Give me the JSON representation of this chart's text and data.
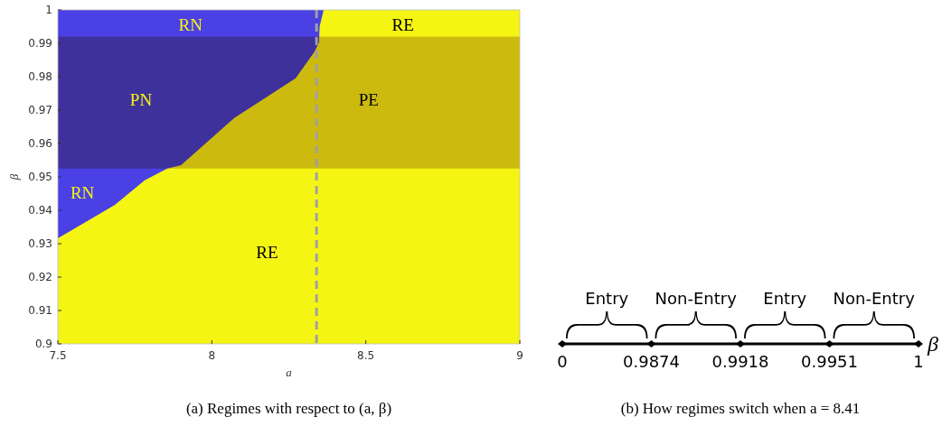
{
  "chart_data": [
    {
      "type": "area",
      "title": "(a) Regimes with respect to (a, β)",
      "xlabel": "a",
      "ylabel": "β",
      "xlim": [
        7.5,
        9
      ],
      "xticks": [
        7.5,
        8,
        8.5,
        9
      ],
      "ylim": [
        0.9,
        1
      ],
      "yticks": [
        0.9,
        0.91,
        0.92,
        0.93,
        0.94,
        0.95,
        0.96,
        0.97,
        0.98,
        0.99,
        1
      ],
      "series": [
        {
          "type": "area",
          "color": "#4a40e4",
          "x": [
            7.5,
            8.363
          ],
          "values": [
            1,
            1
          ]
        },
        {
          "type": "area",
          "color": "#f5f514",
          "x": [
            7.5,
            7.685,
            7.782,
            7.855,
            7.9,
            8.075,
            8.272,
            8.334,
            8.348,
            8.35,
            8.363,
            9
          ],
          "values": [
            0.9316,
            0.9416,
            0.949,
            0.9525,
            0.9535,
            0.9678,
            0.9795,
            0.9876,
            0.9903,
            0.995,
            1,
            1
          ]
        }
      ],
      "bands": [
        {
          "axis": "y",
          "from": 0.9525,
          "to": 0.992,
          "color": "#d6c2ae"
        }
      ],
      "ref_lines": [
        {
          "axis": "x",
          "value": 8.34,
          "color": "#a0a0a0",
          "line_style": "dashed"
        }
      ],
      "annotations": [
        "RN",
        "RE",
        "PN",
        "PE",
        "RN",
        "RE"
      ]
    },
    {
      "type": "other",
      "title": "(b) How regimes switch when a = 8.41",
      "xlabel": "β",
      "annotations": [
        "0",
        "0.9874",
        "0.9918",
        "0.9951",
        "1"
      ],
      "categories": [
        "Entry",
        "Non-Entry",
        "Entry",
        "Non-Entry"
      ]
    }
  ]
}
